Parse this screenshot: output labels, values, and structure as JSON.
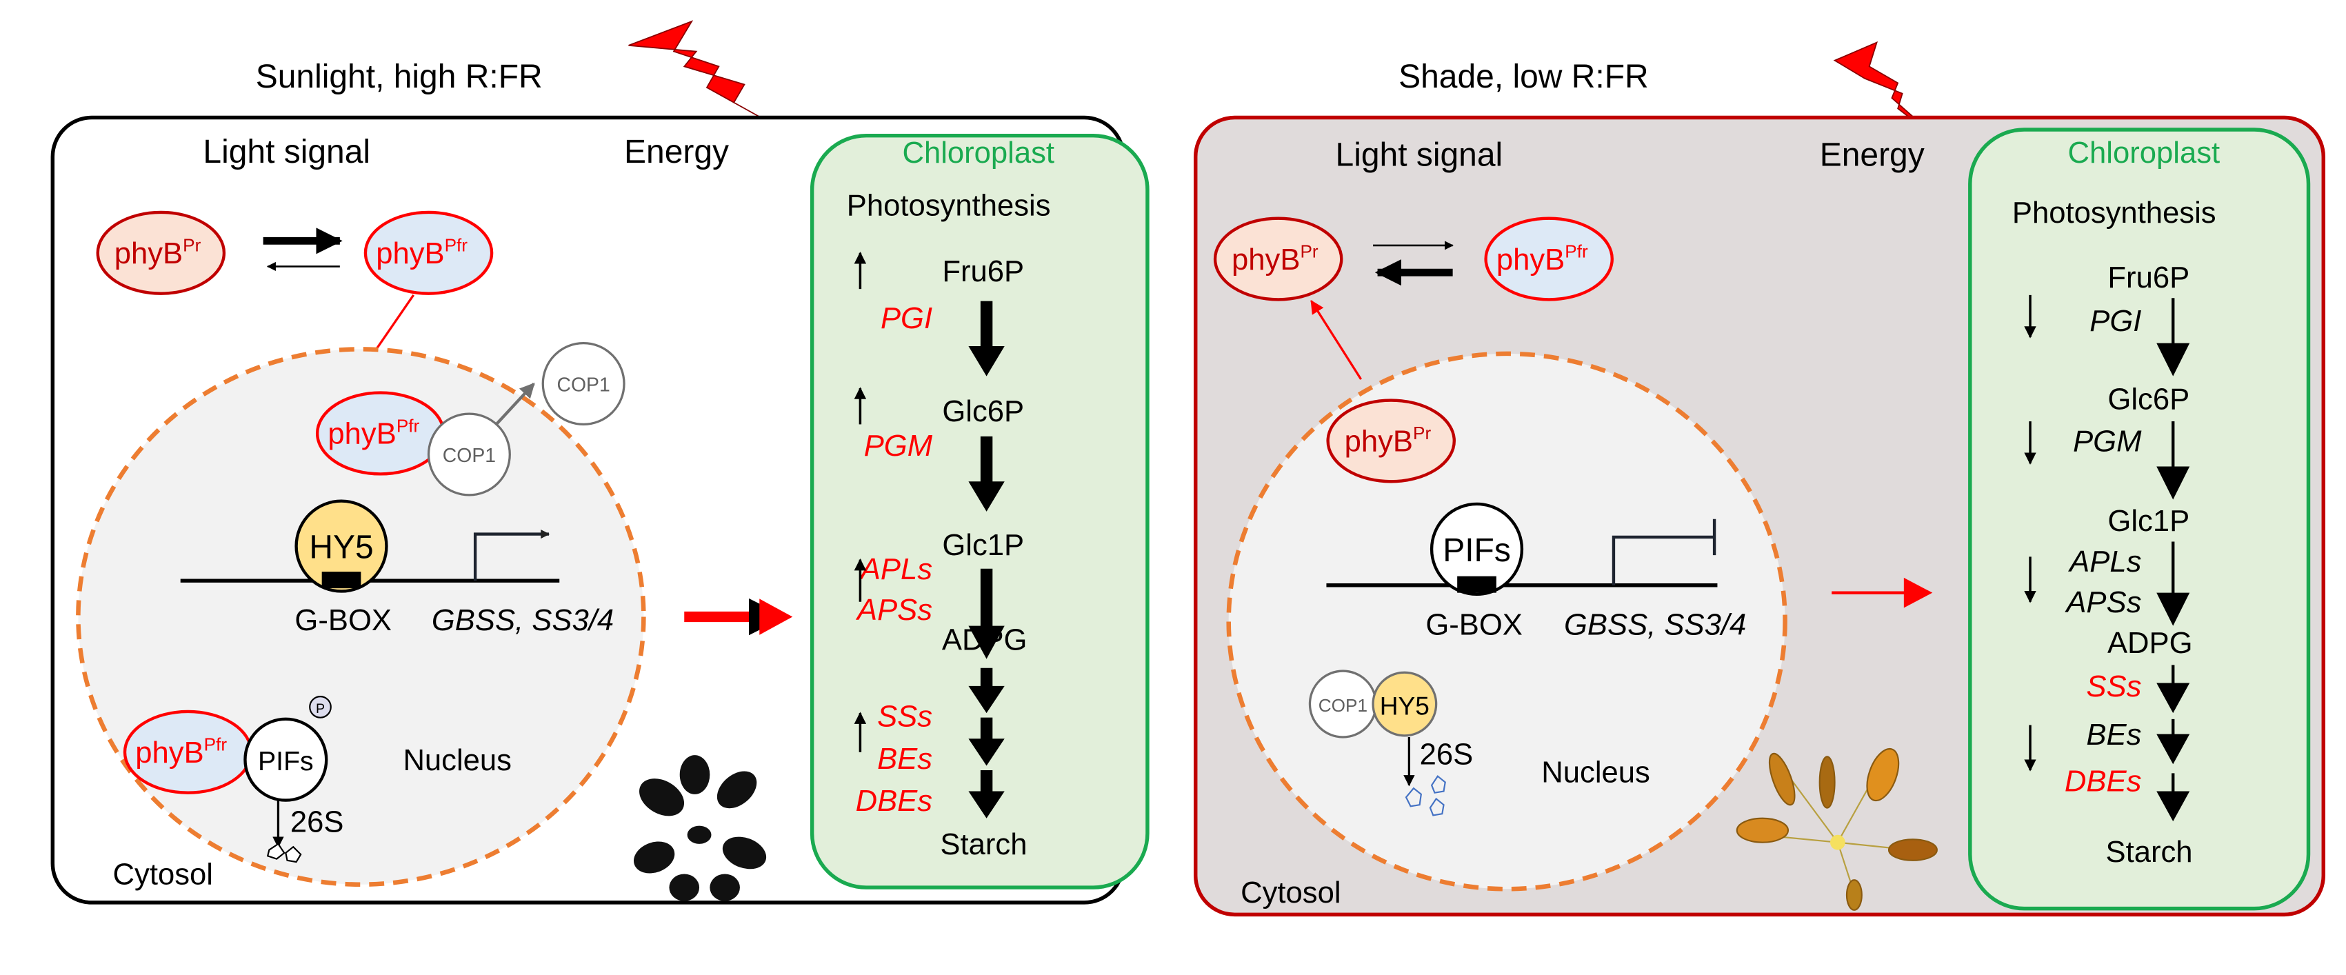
{
  "colors": {
    "red": "#ff0000",
    "dark_red": "#c00000",
    "chloroplast_green": "#1aaa50",
    "chloroplast_fill": "#e2efda",
    "nucleus_orange": "#ed7d31",
    "shade_fill": "#e0dbdb",
    "hy5_yellow": "#ffe08a",
    "pr_fill": "#fbe2d5",
    "pfr_fill": "#dde9f6"
  },
  "left": {
    "title": "Sunlight, high R:FR",
    "light_signal": "Light signal",
    "energy": "Energy",
    "phyb": "phyB",
    "pr": "Pr",
    "pfr": "Pfr",
    "cop1": "COP1",
    "hy5": "HY5",
    "gbox": "G-BOX",
    "genes": "GBSS, SS3/4",
    "pifs": "PIFs",
    "p": "P",
    "s26": "26S",
    "nucleus": "Nucleus",
    "cytosol": "Cytosol",
    "chloroplast": {
      "title": "Chloroplast",
      "subtitle": "Photosynthesis",
      "metabolites": [
        "Fru6P",
        "Glc6P",
        "Glc1P",
        "ADPG",
        "Starch"
      ],
      "enzymes": [
        "PGI",
        "PGM",
        "APLs",
        "APSs",
        "SSs",
        "BEs",
        "DBEs"
      ],
      "regulation": "up"
    }
  },
  "right": {
    "title": "Shade, low R:FR",
    "light_signal": "Light signal",
    "energy": "Energy",
    "phyb": "phyB",
    "pr": "Pr",
    "pfr": "Pfr",
    "pifs": "PIFs",
    "gbox": "G-BOX",
    "genes": "GBSS, SS3/4",
    "cop1": "COP1",
    "hy5": "HY5",
    "s26": "26S",
    "nucleus": "Nucleus",
    "cytosol": "Cytosol",
    "chloroplast": {
      "title": "Chloroplast",
      "subtitle": "Photosynthesis",
      "metabolites": [
        "Fru6P",
        "Glc6P",
        "Glc1P",
        "ADPG",
        "Starch"
      ],
      "enzymes": [
        "PGI",
        "PGM",
        "APLs",
        "APSs",
        "SSs",
        "BEs",
        "DBEs"
      ],
      "regulation": "down"
    }
  }
}
